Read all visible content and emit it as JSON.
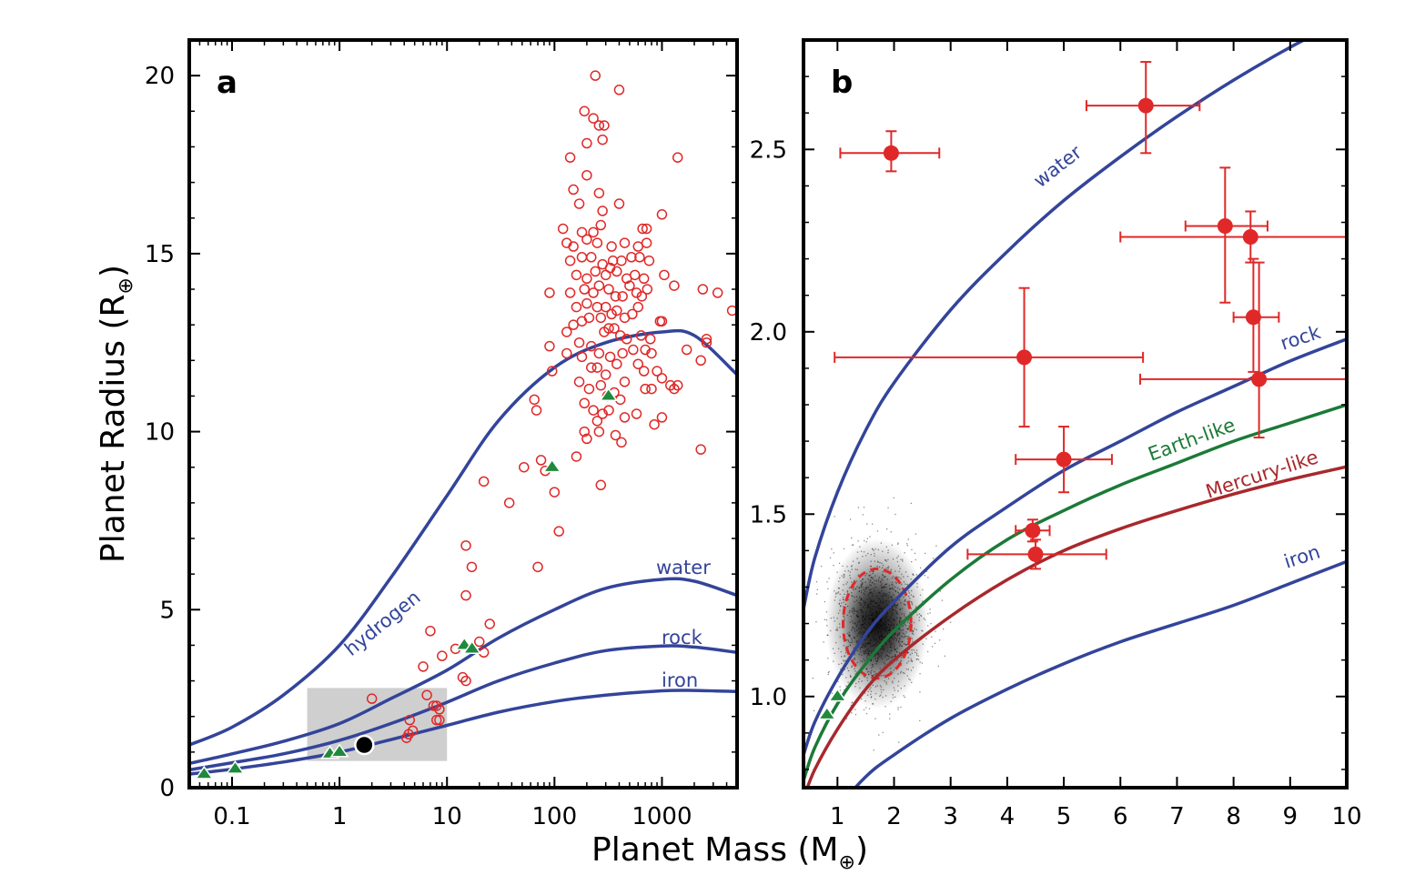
{
  "colors": {
    "model": "#33449a",
    "planet": "#e02828",
    "solar": "#1f8a3c",
    "earthlike": "#1b7a37",
    "mercurylike": "#a8282c",
    "box": "#cfcfcf"
  },
  "xlabel": {
    "text": "Planet Mass (M",
    "symbol": "⊕",
    "close": ")"
  },
  "chart_data": [
    {
      "panel": "a",
      "type": "scatter",
      "xscale": "log",
      "xlim": [
        0.04,
        5000
      ],
      "ylim": [
        0,
        21
      ],
      "xticks": [
        0.1,
        1,
        10,
        100,
        1000
      ],
      "xtick_labels": [
        "0.1",
        "1",
        "10",
        "100",
        "1000"
      ],
      "yticks": [
        0,
        5,
        10,
        15,
        20
      ],
      "ylabel": {
        "text": "Planet Radius (R",
        "symbol": "⊕",
        "close": ")"
      },
      "highlight_box": {
        "x": [
          0.5,
          10
        ],
        "y": [
          0.75,
          2.8
        ]
      },
      "curves": [
        {
          "name": "hydrogen",
          "x": [
            0.04,
            0.1,
            0.3,
            1,
            3,
            10,
            30,
            100,
            300,
            1000,
            2000,
            5000
          ],
          "y": [
            1.2,
            1.7,
            2.6,
            4.0,
            5.9,
            8.2,
            10.3,
            11.8,
            12.5,
            12.8,
            12.7,
            11.6
          ]
        },
        {
          "name": "water",
          "x": [
            0.04,
            0.1,
            0.3,
            1,
            3,
            10,
            30,
            100,
            300,
            1000,
            2000,
            5000
          ],
          "y": [
            0.68,
            0.95,
            1.3,
            1.8,
            2.5,
            3.3,
            4.2,
            5.0,
            5.6,
            5.85,
            5.8,
            5.4
          ]
        },
        {
          "name": "rock",
          "x": [
            0.04,
            0.1,
            0.3,
            1,
            3,
            10,
            30,
            100,
            300,
            1000,
            2000,
            5000
          ],
          "y": [
            0.5,
            0.7,
            0.95,
            1.33,
            1.8,
            2.4,
            3.0,
            3.5,
            3.85,
            3.98,
            3.95,
            3.8
          ]
        },
        {
          "name": "iron",
          "x": [
            0.04,
            0.1,
            0.3,
            1,
            3,
            10,
            30,
            100,
            300,
            1000,
            2000,
            5000
          ],
          "y": [
            0.38,
            0.52,
            0.72,
            1.0,
            1.35,
            1.75,
            2.12,
            2.42,
            2.6,
            2.72,
            2.73,
            2.7
          ]
        }
      ],
      "exoplanets": [
        [
          240,
          20.0
        ],
        [
          400,
          19.6
        ],
        [
          190,
          19.0
        ],
        [
          230,
          18.8
        ],
        [
          260,
          18.6
        ],
        [
          290,
          18.6
        ],
        [
          280,
          18.2
        ],
        [
          200,
          18.1
        ],
        [
          140,
          17.7
        ],
        [
          1400,
          17.7
        ],
        [
          200,
          17.2
        ],
        [
          150,
          16.8
        ],
        [
          260,
          16.7
        ],
        [
          170,
          16.4
        ],
        [
          280,
          16.2
        ],
        [
          400,
          16.4
        ],
        [
          1000,
          16.1
        ],
        [
          120,
          15.7
        ],
        [
          180,
          15.6
        ],
        [
          230,
          15.6
        ],
        [
          270,
          15.8
        ],
        [
          660,
          15.7
        ],
        [
          720,
          15.7
        ],
        [
          130,
          15.3
        ],
        [
          150,
          15.2
        ],
        [
          200,
          15.4
        ],
        [
          250,
          15.3
        ],
        [
          340,
          15.2
        ],
        [
          450,
          15.3
        ],
        [
          600,
          15.2
        ],
        [
          720,
          15.3
        ],
        [
          140,
          14.8
        ],
        [
          180,
          14.9
        ],
        [
          220,
          14.9
        ],
        [
          280,
          14.7
        ],
        [
          350,
          14.8
        ],
        [
          420,
          14.8
        ],
        [
          520,
          14.9
        ],
        [
          620,
          14.9
        ],
        [
          760,
          14.8
        ],
        [
          160,
          14.4
        ],
        [
          200,
          14.3
        ],
        [
          240,
          14.5
        ],
        [
          300,
          14.4
        ],
        [
          330,
          14.6
        ],
        [
          380,
          14.5
        ],
        [
          470,
          14.3
        ],
        [
          560,
          14.4
        ],
        [
          680,
          14.3
        ],
        [
          1050,
          14.4
        ],
        [
          1300,
          14.1
        ],
        [
          2400,
          14.0
        ],
        [
          3300,
          13.9
        ],
        [
          90,
          13.9
        ],
        [
          140,
          13.9
        ],
        [
          190,
          14.0
        ],
        [
          230,
          13.9
        ],
        [
          260,
          14.1
        ],
        [
          320,
          14.0
        ],
        [
          370,
          13.8
        ],
        [
          430,
          13.8
        ],
        [
          500,
          14.1
        ],
        [
          580,
          13.9
        ],
        [
          650,
          13.8
        ],
        [
          730,
          14.0
        ],
        [
          160,
          13.5
        ],
        [
          200,
          13.6
        ],
        [
          250,
          13.5
        ],
        [
          300,
          13.5
        ],
        [
          340,
          13.3
        ],
        [
          380,
          13.4
        ],
        [
          450,
          13.2
        ],
        [
          530,
          13.3
        ],
        [
          600,
          13.5
        ],
        [
          150,
          13.0
        ],
        [
          180,
          13.1
        ],
        [
          210,
          13.2
        ],
        [
          270,
          13.2
        ],
        [
          290,
          12.8
        ],
        [
          320,
          12.9
        ],
        [
          360,
          12.9
        ],
        [
          410,
          12.7
        ],
        [
          470,
          12.6
        ],
        [
          640,
          12.7
        ],
        [
          780,
          12.6
        ],
        [
          960,
          13.1
        ],
        [
          130,
          12.8
        ],
        [
          170,
          12.5
        ],
        [
          220,
          12.4
        ],
        [
          260,
          12.2
        ],
        [
          330,
          12.1
        ],
        [
          430,
          12.2
        ],
        [
          540,
          12.3
        ],
        [
          700,
          12.3
        ],
        [
          800,
          12.2
        ],
        [
          1000,
          13.1
        ],
        [
          1700,
          12.3
        ],
        [
          2600,
          12.5
        ],
        [
          4500,
          13.4
        ],
        [
          90,
          12.4
        ],
        [
          130,
          12.2
        ],
        [
          180,
          12.1
        ],
        [
          220,
          11.8
        ],
        [
          250,
          11.8
        ],
        [
          300,
          11.6
        ],
        [
          380,
          11.9
        ],
        [
          450,
          11.4
        ],
        [
          600,
          11.9
        ],
        [
          680,
          11.7
        ],
        [
          900,
          11.7
        ],
        [
          1200,
          11.3
        ],
        [
          2300,
          12.0
        ],
        [
          2600,
          12.6
        ],
        [
          95,
          11.7
        ],
        [
          170,
          11.4
        ],
        [
          210,
          11.2
        ],
        [
          270,
          11.3
        ],
        [
          310,
          11.0
        ],
        [
          360,
          11.1
        ],
        [
          410,
          10.9
        ],
        [
          700,
          11.2
        ],
        [
          800,
          11.2
        ],
        [
          1000,
          11.5
        ],
        [
          1300,
          11.2
        ],
        [
          1400,
          11.3
        ],
        [
          190,
          10.8
        ],
        [
          230,
          10.6
        ],
        [
          250,
          10.3
        ],
        [
          280,
          10.5
        ],
        [
          320,
          10.6
        ],
        [
          450,
          10.4
        ],
        [
          580,
          10.5
        ],
        [
          1000,
          10.4
        ],
        [
          190,
          10.0
        ],
        [
          200,
          9.8
        ],
        [
          260,
          10.0
        ],
        [
          370,
          9.9
        ],
        [
          850,
          10.2
        ],
        [
          420,
          9.7
        ],
        [
          160,
          9.3
        ],
        [
          2300,
          9.5
        ],
        [
          65,
          10.9
        ],
        [
          68,
          10.6
        ],
        [
          75,
          9.2
        ],
        [
          52,
          9.0
        ],
        [
          82,
          8.9
        ],
        [
          22,
          8.6
        ],
        [
          100,
          8.3
        ],
        [
          270,
          8.5
        ],
        [
          38,
          8.0
        ],
        [
          110,
          7.2
        ],
        [
          15,
          6.8
        ],
        [
          70,
          6.2
        ],
        [
          17,
          6.2
        ],
        [
          15,
          5.4
        ],
        [
          25,
          4.6
        ],
        [
          7,
          4.4
        ],
        [
          20,
          4.1
        ],
        [
          12,
          3.9
        ],
        [
          22,
          3.8
        ],
        [
          9,
          3.7
        ],
        [
          6,
          3.4
        ],
        [
          14,
          3.1
        ],
        [
          15,
          3.0
        ],
        [
          6.5,
          2.6
        ],
        [
          2,
          2.5
        ],
        [
          7.5,
          2.3
        ],
        [
          8,
          2.3
        ],
        [
          8.5,
          2.2
        ],
        [
          8,
          1.9
        ],
        [
          8.5,
          1.9
        ],
        [
          4.5,
          1.9
        ],
        [
          4.8,
          1.6
        ],
        [
          4.4,
          1.5
        ],
        [
          4.2,
          1.4
        ]
      ],
      "solar_system": [
        [
          0.055,
          0.38
        ],
        [
          0.107,
          0.53
        ],
        [
          0.815,
          0.95
        ],
        [
          1.0,
          1.0
        ],
        [
          14.5,
          4.0
        ],
        [
          17.1,
          3.9
        ],
        [
          95,
          9.0
        ],
        [
          318,
          11.0
        ]
      ],
      "highlight_planet": [
        1.7,
        1.2
      ]
    },
    {
      "panel": "b",
      "type": "scatter",
      "xscale": "linear",
      "xlim": [
        0.4,
        10
      ],
      "ylim": [
        0.75,
        2.8
      ],
      "xticks": [
        1,
        2,
        3,
        4,
        5,
        6,
        7,
        8,
        9,
        10
      ],
      "yticks": [
        1.0,
        1.5,
        2.0,
        2.5
      ],
      "ytick_labels": [
        "1.0",
        "1.5",
        "2.0",
        "2.5"
      ],
      "curves": [
        {
          "name": "water",
          "x": [
            0.4,
            0.6,
            1,
            1.5,
            2,
            3,
            4,
            5,
            6,
            7,
            8,
            9,
            10
          ],
          "y": [
            1.24,
            1.38,
            1.56,
            1.73,
            1.86,
            2.06,
            2.22,
            2.36,
            2.48,
            2.59,
            2.69,
            2.78,
            2.86
          ]
        },
        {
          "name": "rock",
          "x": [
            0.4,
            0.6,
            1,
            1.5,
            2,
            3,
            4,
            5,
            6,
            7,
            8,
            9,
            10
          ],
          "y": [
            0.84,
            0.93,
            1.05,
            1.17,
            1.26,
            1.41,
            1.52,
            1.62,
            1.7,
            1.78,
            1.85,
            1.92,
            1.98
          ]
        },
        {
          "name": "Earth-like",
          "x": [
            0.4,
            0.6,
            1,
            1.5,
            2,
            3,
            4,
            5,
            6,
            7,
            8,
            9,
            10
          ],
          "y": [
            0.77,
            0.86,
            0.98,
            1.09,
            1.18,
            1.32,
            1.43,
            1.51,
            1.58,
            1.64,
            1.7,
            1.75,
            1.8
          ]
        },
        {
          "name": "Mercury-like",
          "x": [
            0.4,
            0.6,
            1,
            1.5,
            2,
            3,
            4,
            5,
            6,
            7,
            8,
            9,
            10
          ],
          "y": [
            0.72,
            0.8,
            0.91,
            1.02,
            1.1,
            1.22,
            1.32,
            1.4,
            1.46,
            1.51,
            1.555,
            1.595,
            1.63
          ]
        },
        {
          "name": "iron",
          "x": [
            0.4,
            0.6,
            1,
            1.5,
            2,
            3,
            4,
            5,
            6,
            7,
            8,
            9,
            10
          ],
          "y": [
            0.52,
            0.59,
            0.69,
            0.78,
            0.84,
            0.94,
            1.02,
            1.09,
            1.15,
            1.2,
            1.25,
            1.31,
            1.37
          ]
        }
      ],
      "planets": [
        {
          "x": 1.95,
          "y": 2.49,
          "xerr": [
            0.9,
            0.85
          ],
          "yerr": [
            0.05,
            0.06
          ]
        },
        {
          "x": 6.45,
          "y": 2.62,
          "xerr": [
            1.05,
            0.95
          ],
          "yerr": [
            0.13,
            0.12
          ]
        },
        {
          "x": 7.85,
          "y": 2.29,
          "xerr": [
            0.7,
            0.75
          ],
          "yerr": [
            0.21,
            0.16
          ]
        },
        {
          "x": 8.3,
          "y": 2.26,
          "xerr": [
            2.3,
            1.7
          ],
          "yerr": [
            0.07,
            0.07
          ]
        },
        {
          "x": 8.35,
          "y": 2.04,
          "xerr": [
            0.35,
            0.45
          ],
          "yerr": [
            0.15,
            0.16
          ]
        },
        {
          "x": 4.3,
          "y": 1.93,
          "xerr": [
            3.35,
            2.1
          ],
          "yerr": [
            0.19,
            0.19
          ]
        },
        {
          "x": 8.45,
          "y": 1.87,
          "xerr": [
            2.1,
            1.55
          ],
          "yerr": [
            0.16,
            0.32
          ]
        },
        {
          "x": 5.0,
          "y": 1.65,
          "xerr": [
            0.85,
            0.85
          ],
          "yerr": [
            0.09,
            0.09
          ]
        },
        {
          "x": 4.45,
          "y": 1.455,
          "xerr": [
            0.3,
            0.3
          ],
          "yerr": [
            0.03,
            0.03
          ]
        },
        {
          "x": 4.5,
          "y": 1.39,
          "xerr": [
            1.2,
            1.25
          ],
          "yerr": [
            0.04,
            0.04
          ]
        }
      ],
      "solar_system": [
        [
          0.815,
          0.95
        ],
        [
          1.0,
          1.0
        ]
      ],
      "posterior": {
        "center": [
          1.7,
          1.2
        ],
        "sd": [
          0.35,
          0.09
        ],
        "ellipse_radius": [
          0.6,
          0.15
        ]
      }
    }
  ]
}
